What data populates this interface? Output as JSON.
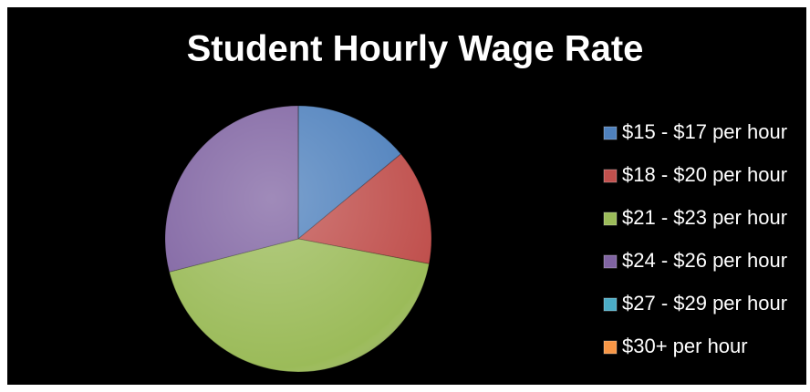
{
  "chart_data": {
    "type": "pie",
    "title": "Student Hourly Wage Rate",
    "categories": [
      "$15 - $17 per hour",
      "$18 - $20 per hour",
      "$21 - $23 per hour",
      "$24 - $26 per hour",
      "$27 - $29 per hour",
      "$30+ per hour"
    ],
    "values": [
      14,
      14,
      43,
      29,
      0,
      0
    ],
    "colors": [
      "#4f81bd",
      "#c0504d",
      "#9bbb59",
      "#8064a2",
      "#4bacc6",
      "#f79646"
    ],
    "legend": "right"
  }
}
